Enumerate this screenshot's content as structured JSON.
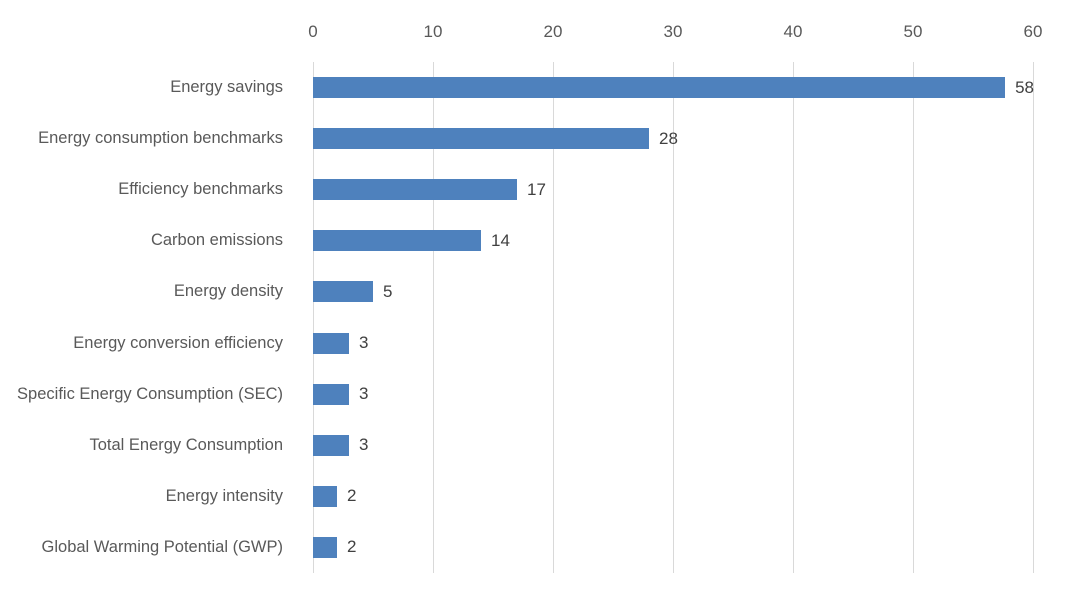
{
  "chart_data": {
    "type": "bar",
    "orientation": "horizontal",
    "title": "",
    "xlabel": "",
    "ylabel": "",
    "categories": [
      "Energy savings",
      "Energy consumption benchmarks",
      "Efficiency benchmarks",
      "Carbon emissions",
      "Energy density",
      "Energy conversion efficiency",
      "Specific Energy Consumption (SEC)",
      "Total Energy Consumption",
      "Energy intensity",
      "Global Warming Potential (GWP)"
    ],
    "values": [
      58,
      28,
      17,
      14,
      5,
      3,
      3,
      3,
      2,
      2
    ],
    "data_labels": [
      "58",
      "28",
      "17",
      "14",
      "5",
      "3",
      "3",
      "3",
      "2",
      "2"
    ],
    "x_ticks": [
      "0",
      "10",
      "20",
      "30",
      "40",
      "50",
      "60"
    ],
    "xlim": [
      0,
      60
    ],
    "axis_position": "top",
    "grid": "vertical",
    "legend": "none",
    "colors": {
      "bar": "#4e81bd",
      "gridline": "#d9d9d9",
      "tick_label": "#595959",
      "category_label": "#595959",
      "value_label": "#404040",
      "background": "#ffffff"
    }
  }
}
